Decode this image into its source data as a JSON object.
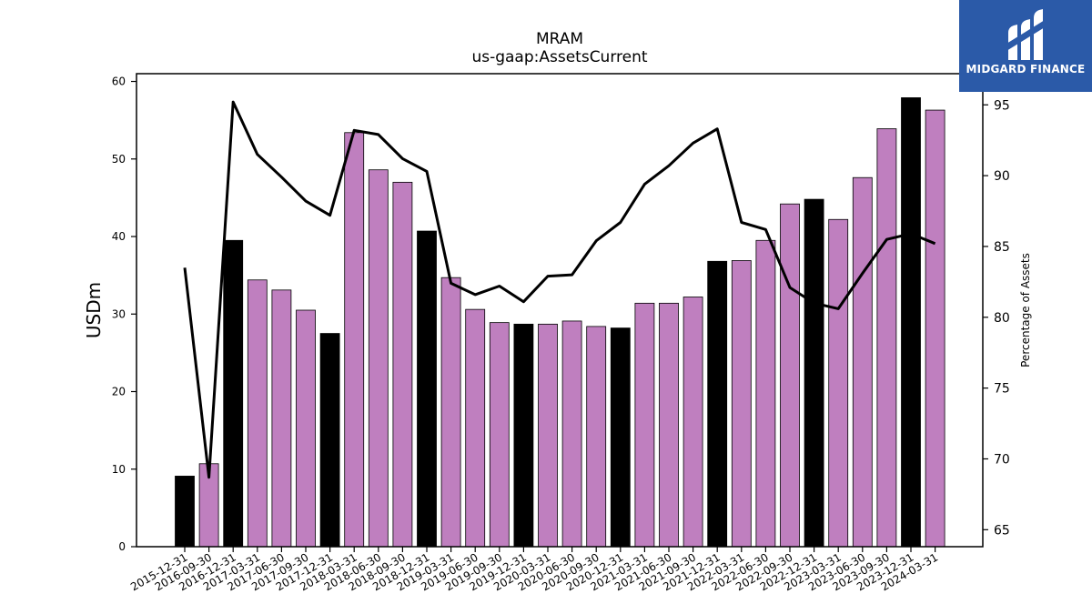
{
  "chart_data": {
    "type": "bar",
    "title": "MRAM",
    "subtitle": "us-gaap:AssetsCurrent",
    "ylabel": "USDm",
    "ylabel_right": "Percentage of Assets",
    "ylim": [
      0,
      61
    ],
    "ylim_right": [
      63.8,
      97.2
    ],
    "yticks": [
      0,
      10,
      20,
      30,
      40,
      50,
      60
    ],
    "yticks_right": [
      65,
      70,
      75,
      80,
      85,
      90,
      95
    ],
    "grid": false,
    "legend": "none",
    "categories": [
      "2015-12-31",
      "2016-09-30",
      "2016-12-31",
      "2017-03-31",
      "2017-06-30",
      "2017-09-30",
      "2017-12-31",
      "2018-03-31",
      "2018-06-30",
      "2018-09-30",
      "2018-12-31",
      "2019-03-31",
      "2019-06-30",
      "2019-09-30",
      "2019-12-31",
      "2020-03-31",
      "2020-06-30",
      "2020-09-30",
      "2020-12-31",
      "2021-03-31",
      "2021-06-30",
      "2021-09-30",
      "2021-12-31",
      "2022-03-31",
      "2022-06-30",
      "2022-09-30",
      "2022-12-31",
      "2023-03-31",
      "2023-06-30",
      "2023-09-30",
      "2023-12-31",
      "2024-03-31"
    ],
    "values": [
      9.1,
      10.7,
      39.5,
      34.4,
      33.1,
      30.5,
      27.5,
      53.4,
      48.6,
      47.0,
      40.7,
      34.7,
      30.6,
      28.9,
      28.7,
      28.7,
      29.1,
      28.4,
      28.2,
      31.4,
      31.4,
      32.2,
      36.8,
      36.9,
      39.5,
      44.2,
      44.8,
      42.2,
      47.6,
      53.9,
      57.9,
      56.3
    ],
    "bar_kind": [
      "annual",
      "quarter",
      "annual",
      "quarter",
      "quarter",
      "quarter",
      "annual",
      "quarter",
      "quarter",
      "quarter",
      "annual",
      "quarter",
      "quarter",
      "quarter",
      "annual",
      "quarter",
      "quarter",
      "quarter",
      "annual",
      "quarter",
      "quarter",
      "quarter",
      "annual",
      "quarter",
      "quarter",
      "quarter",
      "annual",
      "quarter",
      "quarter",
      "quarter",
      "annual",
      "quarter"
    ],
    "line_values": [
      83.5,
      68.7,
      95.2,
      91.5,
      89.9,
      88.2,
      87.2,
      93.2,
      92.9,
      91.2,
      90.3,
      82.4,
      81.6,
      82.2,
      81.1,
      82.9,
      83.0,
      85.4,
      86.7,
      89.4,
      90.7,
      92.3,
      93.3,
      86.7,
      86.2,
      82.1,
      81.0,
      80.6,
      83.1,
      85.5,
      85.9,
      85.2
    ]
  },
  "colors": {
    "annual_bar": "#000000",
    "quarter_bar": "#bf7fbf",
    "line": "#000000",
    "logo_bg": "#2b5aa8"
  },
  "logo": {
    "text": "MIDGARD FINANCE",
    "icon": "midgard-logo-icon"
  }
}
